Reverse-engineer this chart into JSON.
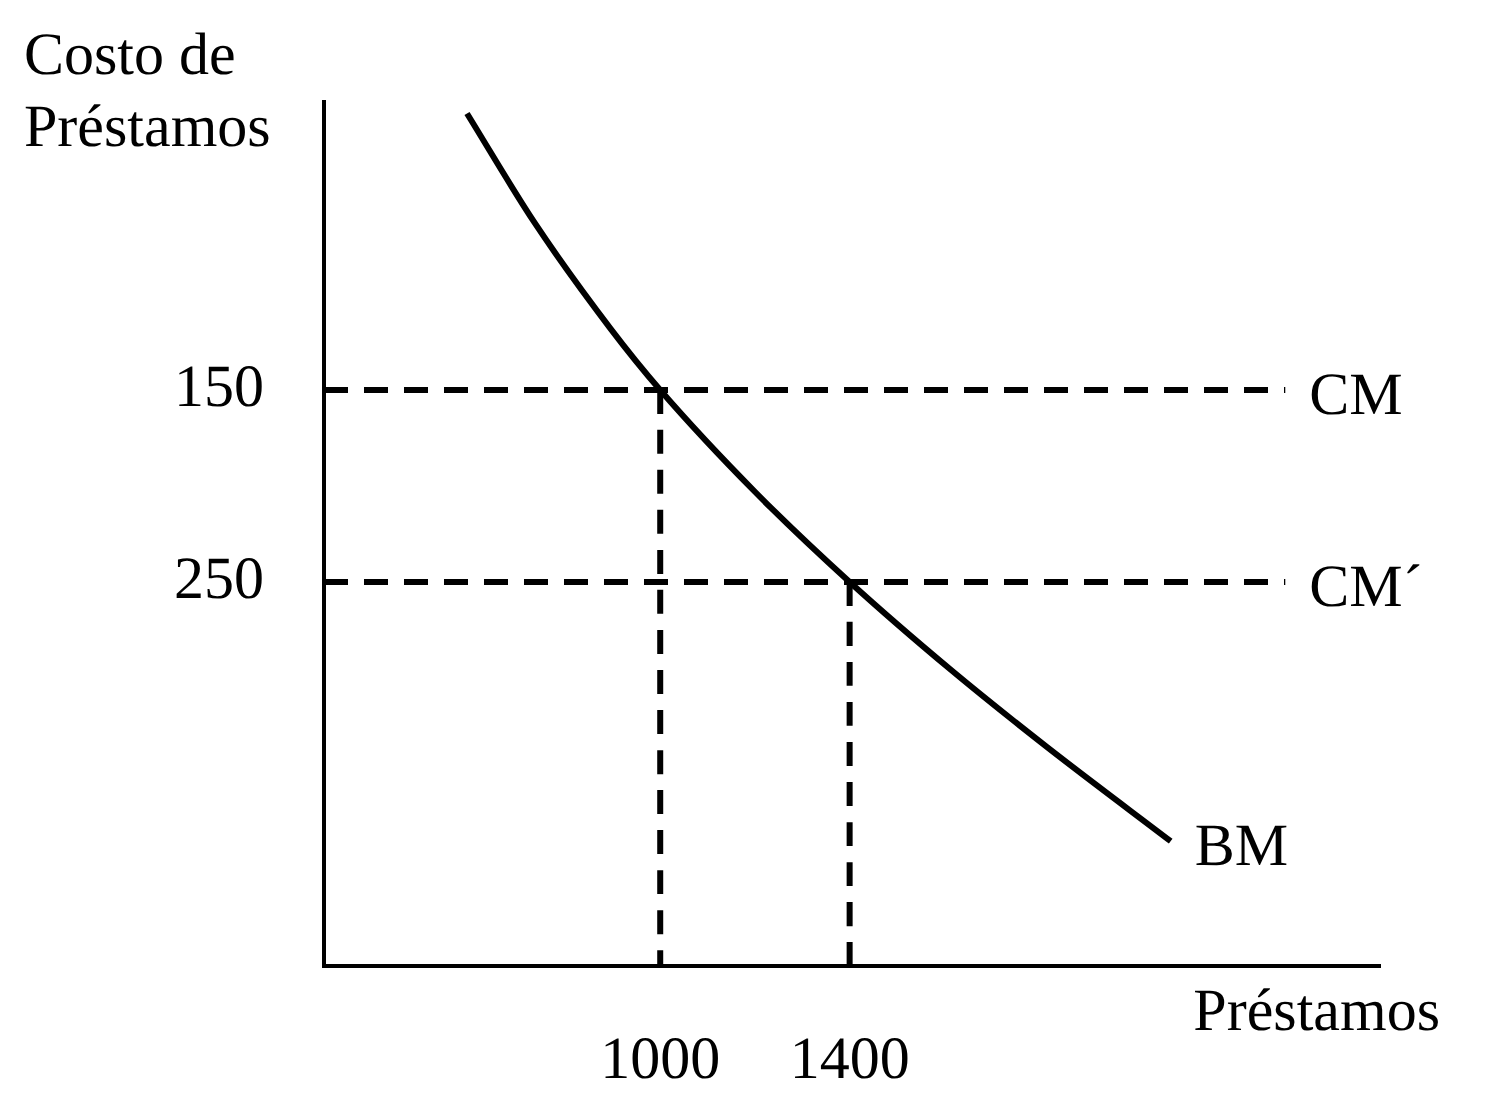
{
  "chart_data": {
    "type": "line",
    "xlabel": "Préstamos",
    "ylabel": "Costo de Préstamos",
    "xlim": [
      290,
      2520
    ],
    "ylim": [
      450,
      0
    ],
    "xticks": [
      1000,
      1400
    ],
    "yticks": [
      150,
      250
    ],
    "grid": false,
    "legend": false,
    "marker": "none",
    "series": [
      {
        "name": "BM",
        "color": "#000000",
        "line_style": "solid",
        "x": [
          592,
          735,
          895,
          1000,
          1200,
          1400,
          1615,
          1817,
          2078
        ],
        "values": [
          6,
          63,
          118,
          150,
          203,
          250,
          296,
          336,
          385
        ]
      },
      {
        "name": "CM",
        "color": "#000000",
        "line_style": "dashed",
        "x": [
          290,
          2320
        ],
        "values": [
          150,
          150
        ]
      },
      {
        "name": "CM´",
        "color": "#000000",
        "line_style": "dashed",
        "x": [
          290,
          2320
        ],
        "values": [
          250,
          250
        ]
      },
      {
        "color": "#000000",
        "line_style": "dashed",
        "x": [
          1000,
          1000
        ],
        "values": [
          150,
          450
        ]
      },
      {
        "color": "#000000",
        "line_style": "dashed",
        "x": [
          1400,
          1400
        ],
        "values": [
          250,
          450
        ]
      }
    ]
  }
}
